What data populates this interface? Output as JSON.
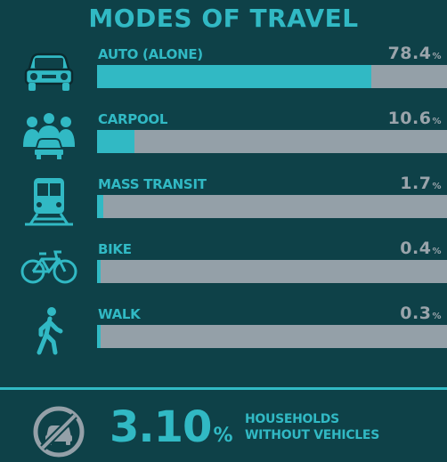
{
  "title": "MODES OF TRAVEL",
  "chart_data": {
    "type": "bar",
    "title": "MODES OF TRAVEL",
    "categories": [
      "AUTO (ALONE)",
      "CARPOOL",
      "MASS TRANSIT",
      "BIKE",
      "WALK"
    ],
    "values": [
      78.4,
      10.6,
      1.7,
      0.4,
      0.3
    ],
    "value_labels": [
      "78.4",
      "10.6",
      "1.7",
      "0.4",
      "0.3"
    ],
    "unit": "%",
    "ylim": [
      0,
      100
    ],
    "icons": [
      "car-icon",
      "carpool-icon",
      "train-icon",
      "bike-icon",
      "walk-icon"
    ]
  },
  "footer": {
    "value": "3.10",
    "unit": "%",
    "label_line1": "HOUSEHOLDS",
    "label_line2": "WITHOUT VEHICLES",
    "icon": "no-car-icon"
  },
  "colors": {
    "background": "#0e4148",
    "accent": "#31b9c4",
    "bar_track": "#94a0a8",
    "value_text": "#9aa4ab"
  }
}
